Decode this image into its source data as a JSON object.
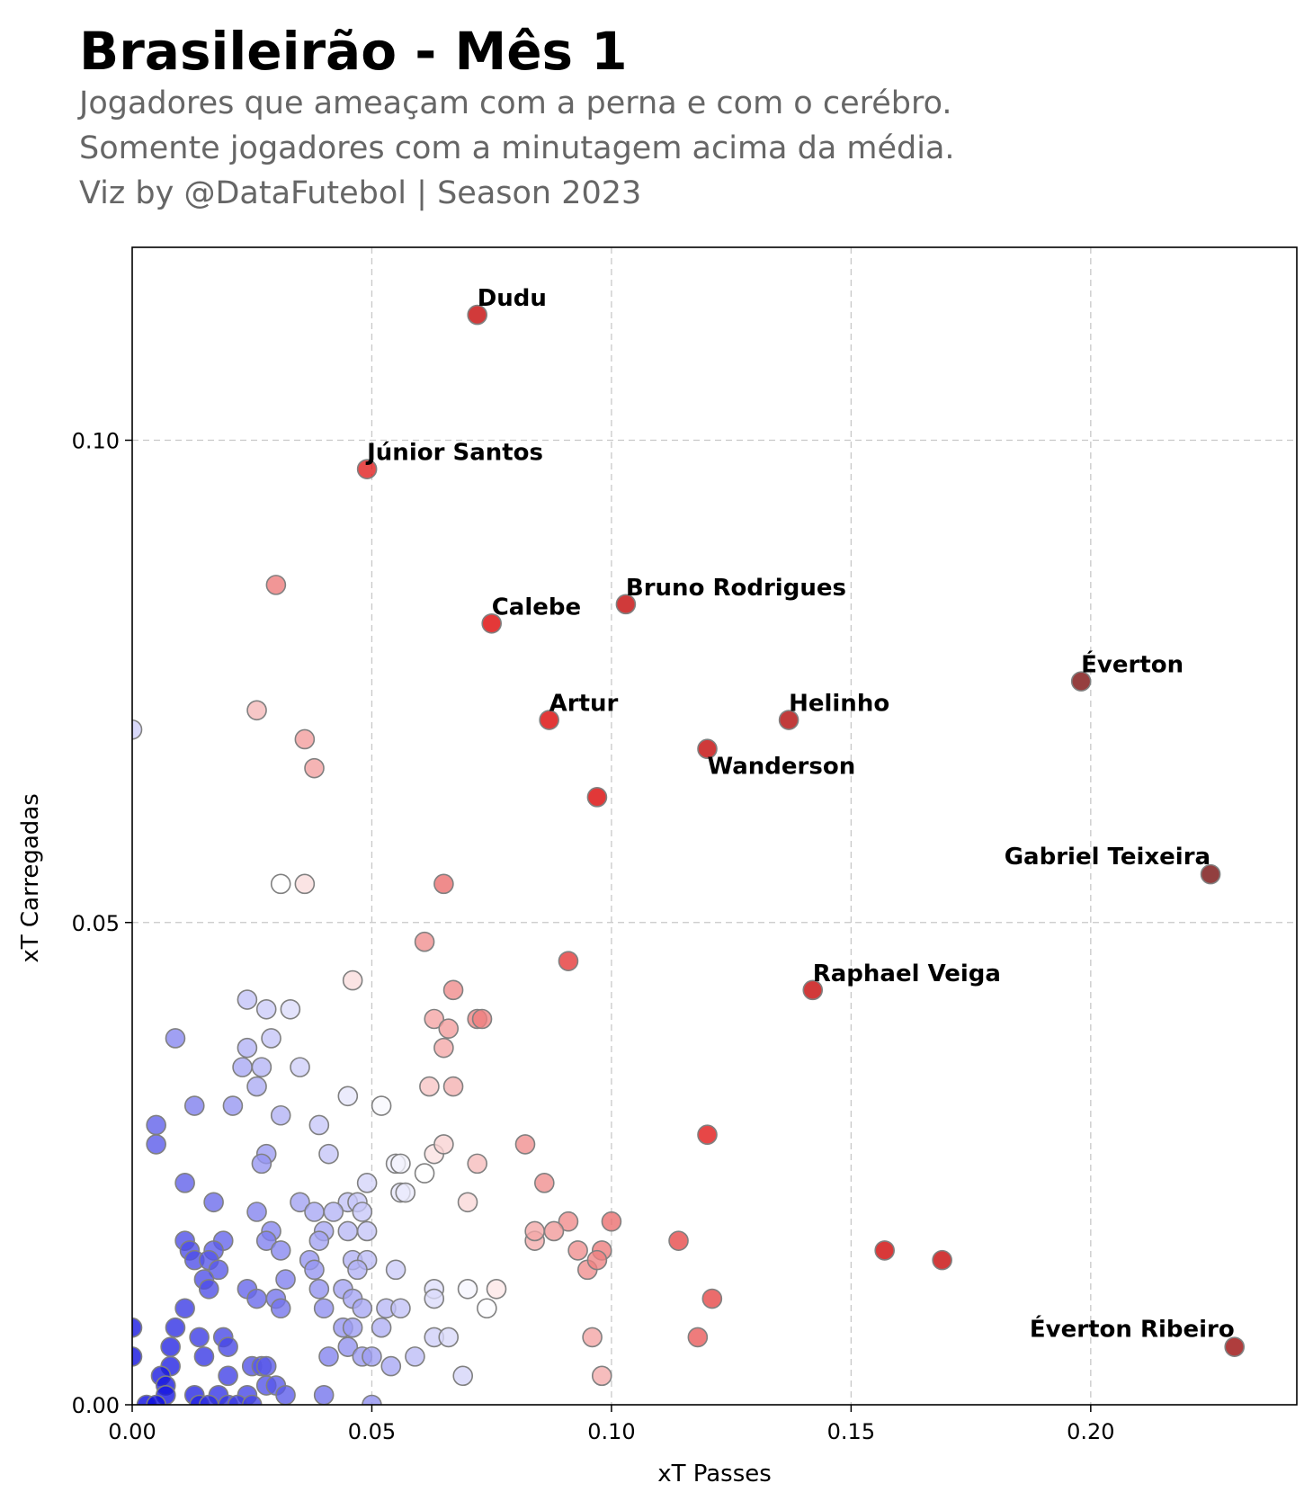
{
  "header": {
    "title": "Brasileirão - Mês 1",
    "subtitle_line1": "Jogadores que ameaçam com a perna e com o cerébro.",
    "subtitle_line2": "Somente jogadores com a minutagem acima da média.",
    "credit": "Viz by @DataFutebol | Season 2023"
  },
  "chart_data": {
    "type": "scatter",
    "title": "Brasileirão - Mês 1",
    "xlabel": "xT Passes",
    "ylabel": "xT Carregadas",
    "xlim": [
      0.0,
      0.243
    ],
    "ylim": [
      0.0,
      0.12
    ],
    "xticks": [
      0.0,
      0.05,
      0.1,
      0.15,
      0.2
    ],
    "xtick_labels": [
      "0.00",
      "0.05",
      "0.10",
      "0.15",
      "0.20"
    ],
    "yticks": [
      0.0,
      0.05,
      0.1
    ],
    "ytick_labels": [
      "0.00",
      "0.05",
      "0.10"
    ],
    "grid": true,
    "color_scale": {
      "type": "diverging",
      "low": "#0000dd",
      "mid": "#ffffff",
      "high": "#dd0000",
      "max": "#6b0a0a"
    },
    "labeled_points": [
      {
        "name": "Dudu",
        "x": 0.072,
        "y": 0.113
      },
      {
        "name": "Júnior Santos",
        "x": 0.049,
        "y": 0.097
      },
      {
        "name": "Bruno Rodrigues",
        "x": 0.103,
        "y": 0.083
      },
      {
        "name": "Calebe",
        "x": 0.075,
        "y": 0.081
      },
      {
        "name": "Éverton",
        "x": 0.198,
        "y": 0.075
      },
      {
        "name": "Artur",
        "x": 0.087,
        "y": 0.071
      },
      {
        "name": "Helinho",
        "x": 0.137,
        "y": 0.071
      },
      {
        "name": "Wanderson",
        "x": 0.12,
        "y": 0.068
      },
      {
        "name": "Gabriel Teixeira",
        "x": 0.225,
        "y": 0.055
      },
      {
        "name": "Raphael Veiga",
        "x": 0.142,
        "y": 0.043
      },
      {
        "name": "Éverton Ribeiro",
        "x": 0.23,
        "y": 0.006
      }
    ],
    "points": [
      [
        0.072,
        0.113
      ],
      [
        0.049,
        0.097
      ],
      [
        0.103,
        0.083
      ],
      [
        0.075,
        0.081
      ],
      [
        0.198,
        0.075
      ],
      [
        0.087,
        0.071
      ],
      [
        0.137,
        0.071
      ],
      [
        0.12,
        0.068
      ],
      [
        0.225,
        0.055
      ],
      [
        0.142,
        0.043
      ],
      [
        0.23,
        0.006
      ],
      [
        0.03,
        0.085
      ],
      [
        0.026,
        0.072
      ],
      [
        0.036,
        0.069
      ],
      [
        0.038,
        0.066
      ],
      [
        0.0,
        0.07
      ],
      [
        0.097,
        0.063
      ],
      [
        0.031,
        0.054
      ],
      [
        0.036,
        0.054
      ],
      [
        0.065,
        0.054
      ],
      [
        0.061,
        0.048
      ],
      [
        0.091,
        0.046
      ],
      [
        0.046,
        0.044
      ],
      [
        0.067,
        0.043
      ],
      [
        0.024,
        0.042
      ],
      [
        0.028,
        0.041
      ],
      [
        0.033,
        0.041
      ],
      [
        0.063,
        0.04
      ],
      [
        0.072,
        0.04
      ],
      [
        0.073,
        0.04
      ],
      [
        0.066,
        0.039
      ],
      [
        0.009,
        0.038
      ],
      [
        0.029,
        0.038
      ],
      [
        0.024,
        0.037
      ],
      [
        0.065,
        0.037
      ],
      [
        0.023,
        0.035
      ],
      [
        0.027,
        0.035
      ],
      [
        0.035,
        0.035
      ],
      [
        0.026,
        0.033
      ],
      [
        0.062,
        0.033
      ],
      [
        0.067,
        0.033
      ],
      [
        0.045,
        0.032
      ],
      [
        0.013,
        0.031
      ],
      [
        0.021,
        0.031
      ],
      [
        0.052,
        0.031
      ],
      [
        0.031,
        0.03
      ],
      [
        0.005,
        0.029
      ],
      [
        0.039,
        0.029
      ],
      [
        0.005,
        0.027
      ],
      [
        0.028,
        0.026
      ],
      [
        0.041,
        0.026
      ],
      [
        0.063,
        0.026
      ],
      [
        0.065,
        0.027
      ],
      [
        0.082,
        0.027
      ],
      [
        0.12,
        0.028
      ],
      [
        0.027,
        0.025
      ],
      [
        0.055,
        0.025
      ],
      [
        0.056,
        0.025
      ],
      [
        0.072,
        0.025
      ],
      [
        0.061,
        0.024
      ],
      [
        0.011,
        0.023
      ],
      [
        0.049,
        0.023
      ],
      [
        0.086,
        0.023
      ],
      [
        0.056,
        0.022
      ],
      [
        0.057,
        0.022
      ],
      [
        0.017,
        0.021
      ],
      [
        0.035,
        0.021
      ],
      [
        0.045,
        0.021
      ],
      [
        0.047,
        0.021
      ],
      [
        0.07,
        0.021
      ],
      [
        0.026,
        0.02
      ],
      [
        0.038,
        0.02
      ],
      [
        0.042,
        0.02
      ],
      [
        0.048,
        0.02
      ],
      [
        0.049,
        0.018
      ],
      [
        0.029,
        0.018
      ],
      [
        0.04,
        0.018
      ],
      [
        0.045,
        0.018
      ],
      [
        0.091,
        0.019
      ],
      [
        0.1,
        0.019
      ],
      [
        0.011,
        0.017
      ],
      [
        0.019,
        0.017
      ],
      [
        0.028,
        0.017
      ],
      [
        0.039,
        0.017
      ],
      [
        0.084,
        0.017
      ],
      [
        0.084,
        0.018
      ],
      [
        0.088,
        0.018
      ],
      [
        0.114,
        0.017
      ],
      [
        0.012,
        0.016
      ],
      [
        0.017,
        0.016
      ],
      [
        0.031,
        0.016
      ],
      [
        0.013,
        0.015
      ],
      [
        0.016,
        0.015
      ],
      [
        0.037,
        0.015
      ],
      [
        0.046,
        0.015
      ],
      [
        0.049,
        0.015
      ],
      [
        0.093,
        0.016
      ],
      [
        0.098,
        0.016
      ],
      [
        0.157,
        0.016
      ],
      [
        0.169,
        0.015
      ],
      [
        0.018,
        0.014
      ],
      [
        0.038,
        0.014
      ],
      [
        0.047,
        0.014
      ],
      [
        0.055,
        0.014
      ],
      [
        0.095,
        0.014
      ],
      [
        0.097,
        0.015
      ],
      [
        0.015,
        0.013
      ],
      [
        0.032,
        0.013
      ],
      [
        0.016,
        0.012
      ],
      [
        0.024,
        0.012
      ],
      [
        0.039,
        0.012
      ],
      [
        0.044,
        0.012
      ],
      [
        0.063,
        0.012
      ],
      [
        0.07,
        0.012
      ],
      [
        0.076,
        0.012
      ],
      [
        0.026,
        0.011
      ],
      [
        0.03,
        0.011
      ],
      [
        0.046,
        0.011
      ],
      [
        0.121,
        0.011
      ],
      [
        0.063,
        0.011
      ],
      [
        0.011,
        0.01
      ],
      [
        0.031,
        0.01
      ],
      [
        0.04,
        0.01
      ],
      [
        0.048,
        0.01
      ],
      [
        0.053,
        0.01
      ],
      [
        0.056,
        0.01
      ],
      [
        0.074,
        0.01
      ],
      [
        0.0,
        0.008
      ],
      [
        0.009,
        0.008
      ],
      [
        0.044,
        0.008
      ],
      [
        0.046,
        0.008
      ],
      [
        0.052,
        0.008
      ],
      [
        0.014,
        0.007
      ],
      [
        0.019,
        0.007
      ],
      [
        0.063,
        0.007
      ],
      [
        0.066,
        0.007
      ],
      [
        0.096,
        0.007
      ],
      [
        0.118,
        0.007
      ],
      [
        0.008,
        0.006
      ],
      [
        0.02,
        0.006
      ],
      [
        0.045,
        0.006
      ],
      [
        0.0,
        0.005
      ],
      [
        0.015,
        0.005
      ],
      [
        0.041,
        0.005
      ],
      [
        0.048,
        0.005
      ],
      [
        0.05,
        0.005
      ],
      [
        0.054,
        0.004
      ],
      [
        0.059,
        0.005
      ],
      [
        0.008,
        0.004
      ],
      [
        0.025,
        0.004
      ],
      [
        0.027,
        0.004
      ],
      [
        0.028,
        0.004
      ],
      [
        0.006,
        0.003
      ],
      [
        0.02,
        0.003
      ],
      [
        0.069,
        0.003
      ],
      [
        0.098,
        0.003
      ],
      [
        0.007,
        0.002
      ],
      [
        0.028,
        0.002
      ],
      [
        0.03,
        0.002
      ],
      [
        0.007,
        0.001
      ],
      [
        0.013,
        0.001
      ],
      [
        0.018,
        0.001
      ],
      [
        0.024,
        0.001
      ],
      [
        0.032,
        0.001
      ],
      [
        0.04,
        0.001
      ],
      [
        0.003,
        0.0
      ],
      [
        0.005,
        0.0
      ],
      [
        0.014,
        0.0
      ],
      [
        0.016,
        0.0
      ],
      [
        0.02,
        0.0
      ],
      [
        0.022,
        0.0
      ],
      [
        0.025,
        0.0
      ],
      [
        0.05,
        0.0
      ]
    ]
  }
}
